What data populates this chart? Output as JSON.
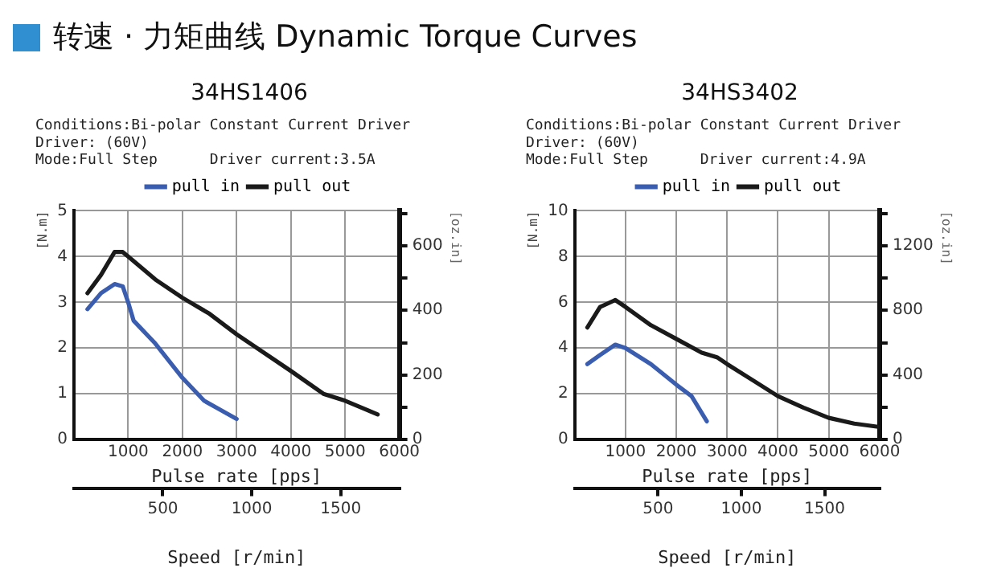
{
  "chart_data": [
    {
      "type": "line",
      "title": "34HS1406",
      "subtitle": "Conditions:Bi-polar Constant Current Driver\nDriver: (60V)\nMode:Full Step      Driver current:3.5A",
      "annotations": [
        "转速 · 力矩曲线  Dynamic Torque Curves"
      ],
      "xlabel": "Pulse rate [pps]",
      "ylabel": "[N.m]",
      "y2label": "[oz.in]",
      "x2label": "Speed [r/min]",
      "xlim": [
        0,
        6000
      ],
      "xticks": [
        1000,
        2000,
        3000,
        4000,
        5000,
        6000
      ],
      "ylim": [
        0,
        5
      ],
      "yticks": [
        0,
        1,
        2,
        3,
        4,
        5
      ],
      "y2lim": [
        0,
        708
      ],
      "y2ticks": [
        0,
        {
          "value": 100,
          "label": null
        },
        200,
        {
          "value": 300,
          "label": null
        },
        400,
        {
          "value": 500,
          "label": null
        },
        600,
        {
          "value": 700,
          "label": null
        }
      ],
      "x2lim": [
        0,
        1830
      ],
      "x2ticks": [
        500,
        1000,
        1500
      ],
      "grid": true,
      "legend": "top",
      "marker": "none",
      "series": [
        {
          "name": "pull in",
          "color": "#3a5db0",
          "x": [
            250,
            500,
            750,
            900,
            1000,
            1100,
            1500,
            2000,
            2400,
            3000
          ],
          "values": [
            2.85,
            3.2,
            3.4,
            3.35,
            3.0,
            2.6,
            2.1,
            1.35,
            0.85,
            0.45
          ]
        },
        {
          "name": "pull out",
          "color": "#1a1a1a",
          "x": [
            250,
            500,
            750,
            900,
            1000,
            1500,
            2000,
            2500,
            3000,
            4000,
            4600,
            5000,
            5600
          ],
          "values": [
            3.2,
            3.6,
            4.1,
            4.1,
            4.0,
            3.5,
            3.1,
            2.75,
            2.3,
            1.5,
            1.0,
            0.85,
            0.55
          ]
        }
      ]
    },
    {
      "type": "line",
      "title": "34HS3402",
      "subtitle": "Conditions:Bi-polar Constant Current Driver\nDriver: (60V)\nMode:Full Step      Driver current:4.9A",
      "xlabel": "Pulse rate [pps]",
      "ylabel": "[N.m]",
      "y2label": "[oz.in]",
      "x2label": "Speed [r/min]",
      "xlim": [
        0,
        6000
      ],
      "xticks": [
        1000,
        2000,
        3000,
        4000,
        5000,
        6000
      ],
      "ylim": [
        0,
        10
      ],
      "yticks": [
        0,
        2,
        4,
        6,
        8,
        10
      ],
      "y2lim": [
        0,
        1416
      ],
      "y2ticks": [
        0,
        {
          "value": 200,
          "label": null
        },
        400,
        {
          "value": 600,
          "label": null
        },
        800,
        {
          "value": 1000,
          "label": null
        },
        1200,
        {
          "value": 1400,
          "label": null
        }
      ],
      "x2lim": [
        0,
        1830
      ],
      "x2ticks": [
        500,
        1000,
        1500
      ],
      "grid": true,
      "legend": "top",
      "marker": "none",
      "series": [
        {
          "name": "pull in",
          "color": "#3a5db0",
          "x": [
            250,
            500,
            800,
            1000,
            1500,
            2000,
            2300,
            2600
          ],
          "values": [
            3.3,
            3.7,
            4.15,
            4.0,
            3.3,
            2.4,
            1.9,
            0.8
          ]
        },
        {
          "name": "pull out",
          "color": "#1a1a1a",
          "x": [
            250,
            500,
            800,
            1000,
            1500,
            2000,
            2500,
            2800,
            3000,
            3500,
            4000,
            4500,
            5000,
            5500,
            6000
          ],
          "values": [
            4.9,
            5.8,
            6.1,
            5.8,
            5.0,
            4.4,
            3.8,
            3.6,
            3.3,
            2.6,
            1.9,
            1.4,
            0.95,
            0.7,
            0.55
          ]
        }
      ]
    }
  ]
}
